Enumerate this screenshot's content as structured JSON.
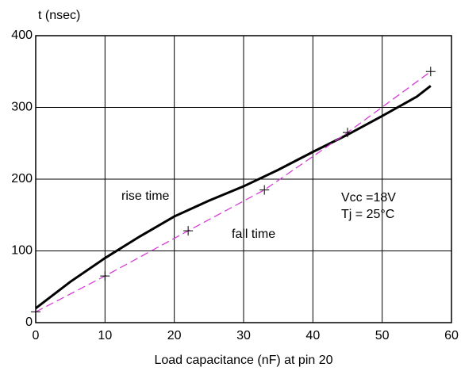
{
  "chart_data": {
    "type": "line",
    "y_label": "t (nsec)",
    "x_label": "Load capacitance (nF) at pin 20",
    "annotations": [
      "Vcc  =18V",
      "Tj = 25°C"
    ],
    "xlim": [
      0,
      60
    ],
    "xticks": [
      0,
      10,
      20,
      30,
      40,
      50,
      60
    ],
    "ylim": [
      0,
      400
    ],
    "yticks": [
      0,
      100,
      200,
      300,
      400
    ],
    "grid": true,
    "series": [
      {
        "name": "rise time",
        "color": "#000000",
        "dash": false,
        "marker": null,
        "x": [
          0,
          5,
          10,
          15,
          20,
          25,
          30,
          35,
          40,
          45,
          50,
          55,
          57
        ],
        "values": [
          20,
          57,
          90,
          120,
          148,
          170,
          190,
          213,
          238,
          262,
          288,
          315,
          330
        ]
      },
      {
        "name": "fall time",
        "color": "#d63fd6",
        "dash": true,
        "marker": "+",
        "x": [
          0,
          10,
          22,
          33,
          45,
          57
        ],
        "values": [
          15,
          65,
          128,
          185,
          265,
          350
        ]
      }
    ]
  }
}
